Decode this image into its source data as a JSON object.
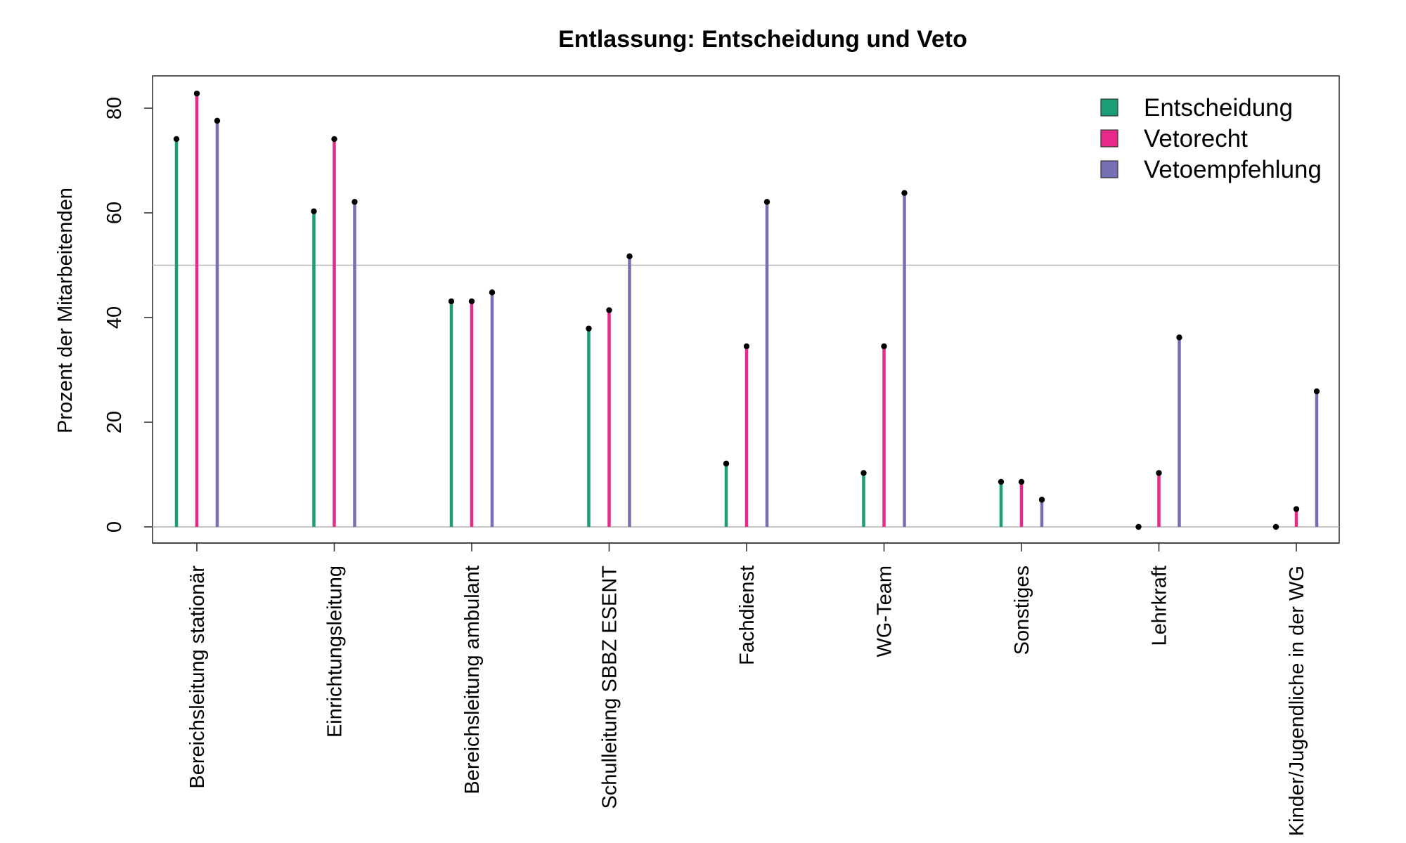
{
  "chart_data": {
    "type": "bar",
    "title": "Entlassung: Entscheidung und Veto",
    "xlabel": "",
    "ylabel": "Prozent der Mitarbeitenden",
    "ylim": [
      -3,
      86
    ],
    "yticks": [
      0,
      20,
      40,
      60,
      80
    ],
    "ytick_labels": [
      "0",
      "20",
      "40",
      "60",
      "80"
    ],
    "reference_line": 50,
    "grid": false,
    "legend_position": "top-right",
    "categories": [
      "Bereichsleitung stationär",
      "Einrichtungsleitung",
      "Bereichsleitung ambulant",
      "Schulleitung SBBZ ESENT",
      "Fachdienst",
      "WG-Team",
      "Sonstiges",
      "Lehrkraft",
      "Kinder/Jugendliche in der WG"
    ],
    "series": [
      {
        "name": "Entscheidung",
        "color": "#1b9e77",
        "values": [
          74.1,
          60.3,
          43.1,
          37.9,
          12.1,
          10.3,
          8.6,
          0,
          0
        ]
      },
      {
        "name": "Vetorecht",
        "color": "#e7298a",
        "values": [
          82.8,
          74.1,
          43.1,
          41.4,
          34.5,
          34.5,
          8.6,
          10.3,
          3.4
        ]
      },
      {
        "name": "Vetoempfehlung",
        "color": "#7570b3",
        "values": [
          77.6,
          62.1,
          44.8,
          51.7,
          62.1,
          63.8,
          5.2,
          36.2,
          25.9
        ]
      }
    ]
  }
}
